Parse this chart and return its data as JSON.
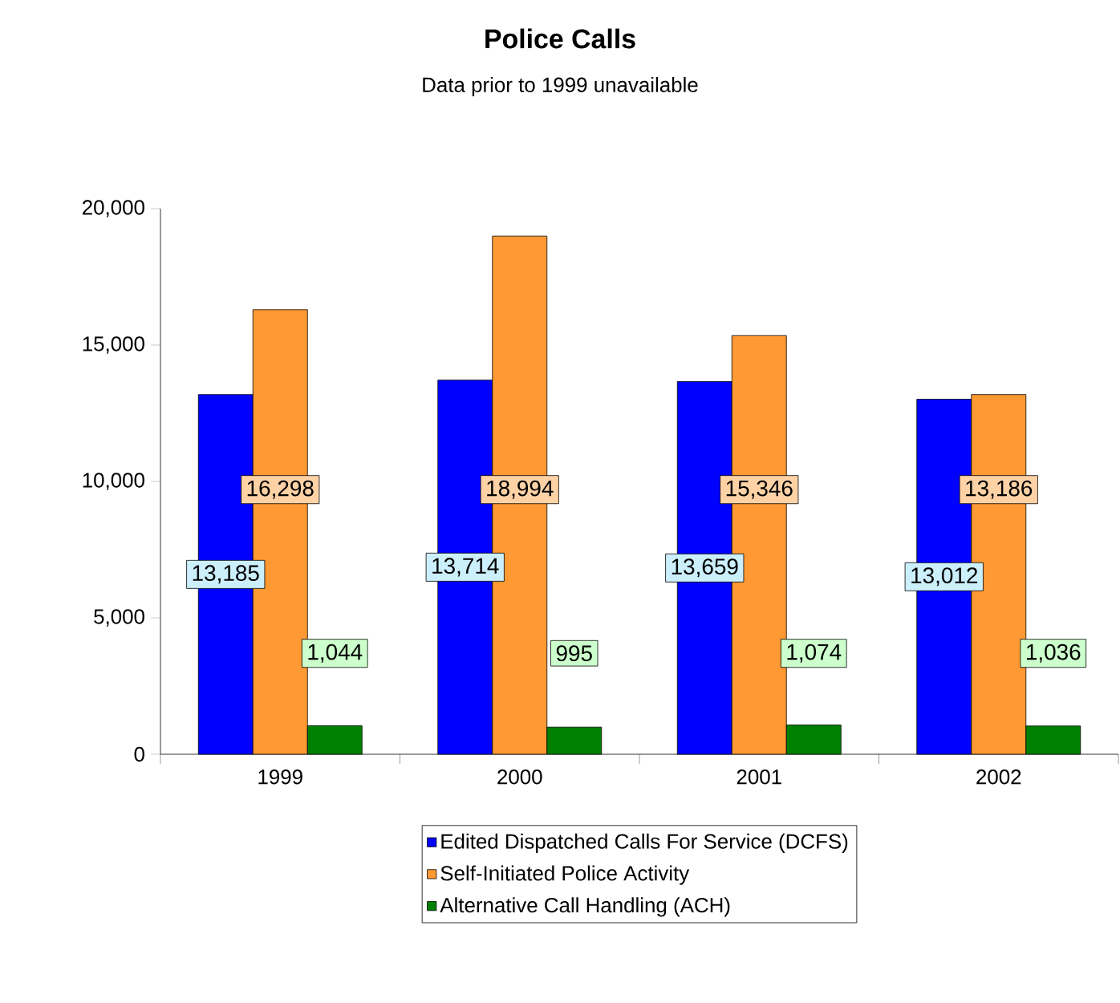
{
  "chart_data": {
    "type": "bar",
    "title": "Police Calls",
    "subtitle": "Data prior to 1999 unavailable",
    "categories": [
      "1999",
      "2000",
      "2001",
      "2002"
    ],
    "series": [
      {
        "name": "Edited Dispatched Calls For Service (DCFS)",
        "color": "#0000ff",
        "values": [
          13185,
          13714,
          13659,
          13012
        ],
        "value_labels": [
          "13,185",
          "13,714",
          "13,659",
          "13,012"
        ]
      },
      {
        "name": "Self-Initiated Police Activity",
        "color": "#ff9933",
        "values": [
          16298,
          18994,
          15346,
          13186
        ],
        "value_labels": [
          "16,298",
          "18,994",
          "15,346",
          "13,186"
        ]
      },
      {
        "name": "Alternative Call Handling (ACH)",
        "color": "#008000",
        "values": [
          1044,
          995,
          1074,
          1036
        ],
        "value_labels": [
          "1,044",
          "995",
          "1,074",
          "1,036"
        ]
      }
    ],
    "ylim": [
      0,
      20000
    ],
    "yticks": [
      0,
      {
        "value": 5000,
        "label": "5,000"
      },
      {
        "value": 10000,
        "label": "10,000"
      },
      {
        "value": 15000,
        "label": "15,000"
      },
      {
        "value": 20000,
        "label": "20,000"
      }
    ],
    "legend": "bottom",
    "grid": false
  }
}
